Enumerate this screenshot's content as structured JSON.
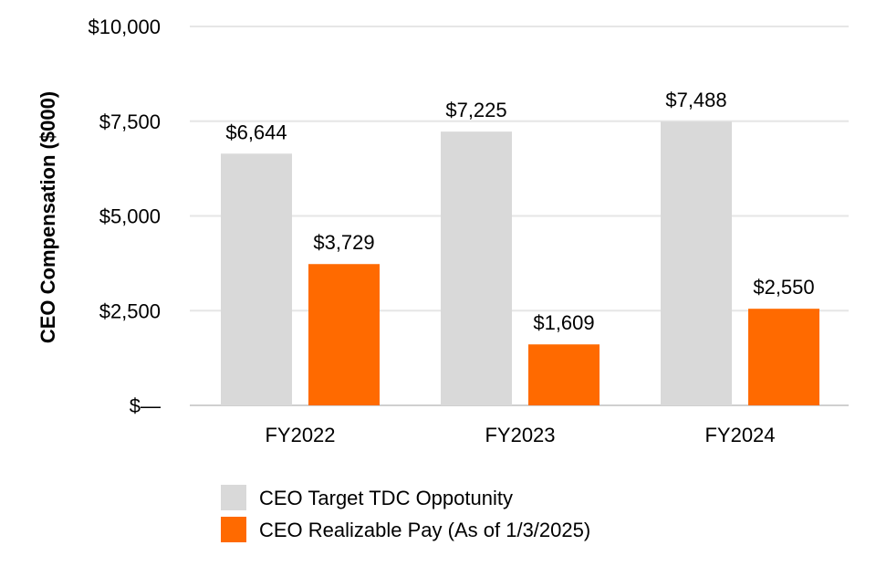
{
  "chart_data": {
    "type": "bar",
    "title": "",
    "xlabel": "",
    "ylabel": "CEO Compensation ($000)",
    "ylim": [
      0,
      10000
    ],
    "yticks": [
      0,
      2500,
      5000,
      7500,
      10000
    ],
    "ytick_labels": [
      "$—",
      "$2,500",
      "$5,000",
      "$7,500",
      "$10,000"
    ],
    "grid": true,
    "legend_position": "bottom",
    "categories": [
      "FY2022",
      "FY2023",
      "FY2024"
    ],
    "series": [
      {
        "name": "CEO Target TDC Oppotunity",
        "color": "#d9d9d9",
        "values": [
          6644,
          7225,
          7488
        ],
        "labels": [
          "$6,644",
          "$7,225",
          "$7,488"
        ]
      },
      {
        "name": "CEO Realizable Pay (As of 1/3/2025)",
        "color": "#ff6a00",
        "values": [
          3729,
          1609,
          2550
        ],
        "labels": [
          "$3,729",
          "$1,609",
          "$2,550"
        ]
      }
    ]
  }
}
